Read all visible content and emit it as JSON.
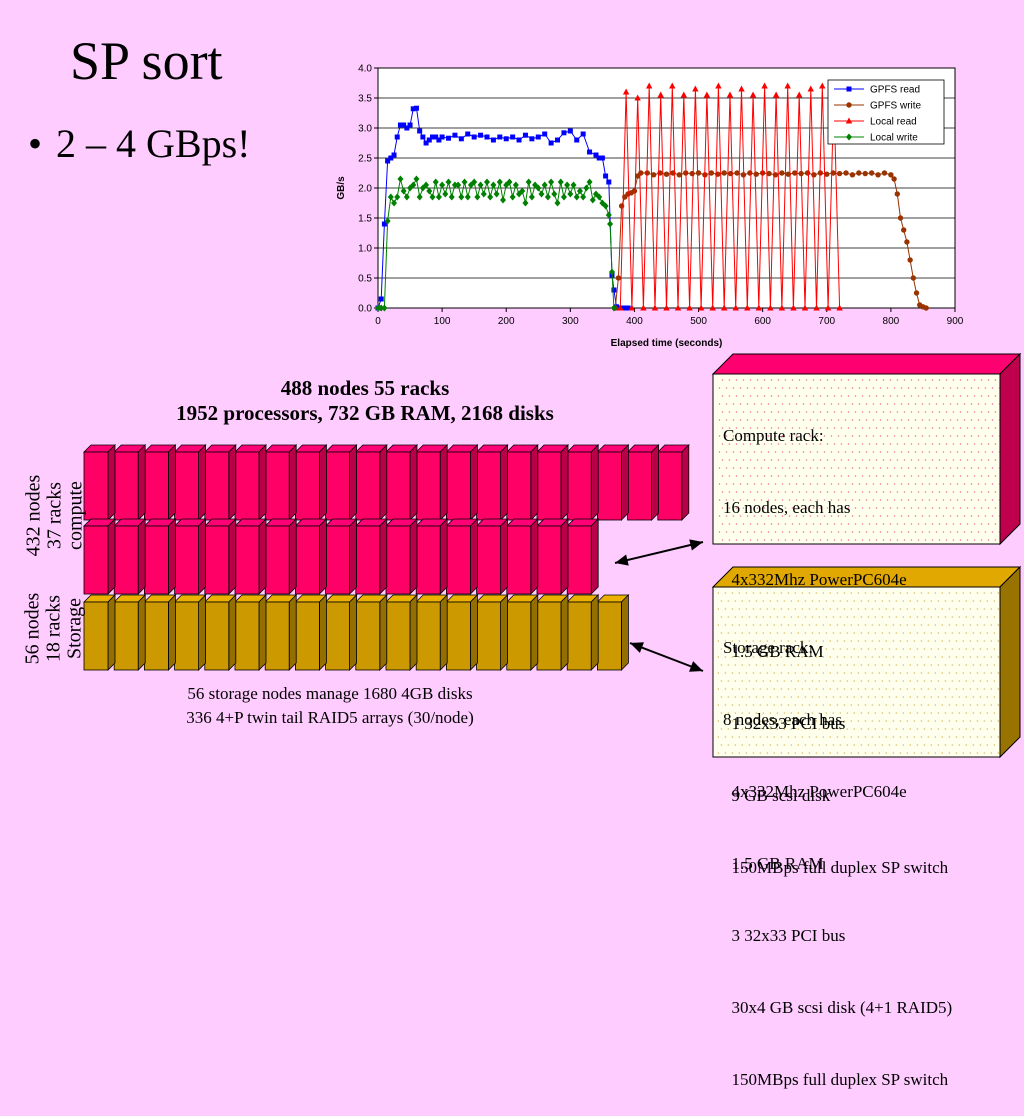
{
  "slide": {
    "title": "SP sort",
    "bullet": "2 – 4 GBps!"
  },
  "chart_data": {
    "type": "line",
    "xlabel": "Elapsed time (seconds)",
    "ylabel": "GB/s",
    "xlim": [
      0,
      900
    ],
    "ylim": [
      0,
      4.0
    ],
    "xticks": [
      0,
      100,
      200,
      300,
      400,
      500,
      600,
      700,
      800,
      900
    ],
    "yticks": [
      "0.0",
      "0.5",
      "1.0",
      "1.5",
      "2.0",
      "2.5",
      "3.0",
      "3.5",
      "4.0"
    ],
    "grid": "horizontal",
    "legend_position": "top-right",
    "series": [
      {
        "name": "GPFS read",
        "color": "#0000ff",
        "marker": "square",
        "x": [
          0,
          5,
          10,
          15,
          20,
          25,
          30,
          35,
          40,
          45,
          50,
          55,
          60,
          65,
          70,
          75,
          80,
          85,
          90,
          95,
          100,
          110,
          120,
          130,
          140,
          150,
          160,
          170,
          180,
          190,
          200,
          210,
          220,
          230,
          240,
          250,
          260,
          270,
          280,
          290,
          300,
          310,
          320,
          330,
          340,
          345,
          350,
          355,
          360,
          365,
          368,
          372,
          376,
          380,
          385,
          390
        ],
        "y": [
          0,
          0.15,
          1.4,
          2.45,
          2.5,
          2.55,
          2.85,
          3.05,
          3.05,
          3.0,
          3.05,
          3.32,
          3.33,
          2.95,
          2.85,
          2.75,
          2.8,
          2.85,
          2.85,
          2.8,
          2.85,
          2.83,
          2.88,
          2.82,
          2.9,
          2.85,
          2.88,
          2.85,
          2.8,
          2.85,
          2.82,
          2.85,
          2.8,
          2.88,
          2.82,
          2.85,
          2.9,
          2.75,
          2.8,
          2.92,
          2.95,
          2.8,
          2.9,
          2.6,
          2.55,
          2.5,
          2.5,
          2.2,
          2.1,
          0.55,
          0.3,
          0.02,
          0,
          0,
          0,
          0
        ]
      },
      {
        "name": "GPFS write",
        "color": "#993300",
        "marker": "circle",
        "x": [
          370,
          375,
          380,
          385,
          390,
          395,
          400,
          405,
          410,
          420,
          430,
          440,
          450,
          460,
          470,
          480,
          490,
          500,
          510,
          520,
          530,
          540,
          550,
          560,
          570,
          580,
          590,
          600,
          610,
          620,
          630,
          640,
          650,
          660,
          670,
          680,
          690,
          700,
          710,
          720,
          730,
          740,
          750,
          760,
          770,
          780,
          790,
          800,
          805,
          810,
          815,
          820,
          825,
          830,
          835,
          840,
          845,
          850,
          855
        ],
        "y": [
          0,
          0.5,
          1.7,
          1.85,
          1.9,
          1.92,
          1.95,
          2.2,
          2.25,
          2.25,
          2.22,
          2.25,
          2.23,
          2.25,
          2.22,
          2.25,
          2.24,
          2.25,
          2.22,
          2.25,
          2.23,
          2.25,
          2.24,
          2.25,
          2.22,
          2.25,
          2.23,
          2.25,
          2.24,
          2.22,
          2.25,
          2.23,
          2.25,
          2.24,
          2.25,
          2.22,
          2.25,
          2.23,
          2.25,
          2.24,
          2.25,
          2.22,
          2.25,
          2.24,
          2.25,
          2.22,
          2.25,
          2.22,
          2.15,
          1.9,
          1.5,
          1.3,
          1.1,
          0.8,
          0.5,
          0.25,
          0.05,
          0.02,
          0
        ]
      },
      {
        "name": "Local read",
        "color": "#ff0000",
        "marker": "triangle",
        "x": [
          378,
          387,
          396,
          405,
          414,
          423,
          432,
          441,
          450,
          459,
          468,
          477,
          486,
          495,
          504,
          513,
          522,
          531,
          540,
          549,
          558,
          567,
          576,
          585,
          594,
          603,
          612,
          621,
          630,
          639,
          648,
          657,
          666,
          675,
          684,
          693,
          702,
          711,
          720
        ],
        "y": [
          0,
          3.6,
          0,
          3.5,
          0,
          3.7,
          0,
          3.55,
          0,
          3.7,
          0,
          3.55,
          0,
          3.65,
          0,
          3.55,
          0,
          3.7,
          0,
          3.55,
          0,
          3.65,
          0,
          3.55,
          0,
          3.7,
          0,
          3.55,
          0,
          3.7,
          0,
          3.55,
          0,
          3.65,
          0,
          3.7,
          0,
          3.55,
          0
        ]
      },
      {
        "name": "Local write",
        "color": "#008000",
        "marker": "diamond",
        "x": [
          0,
          5,
          10,
          15,
          20,
          25,
          30,
          35,
          40,
          45,
          50,
          55,
          60,
          65,
          70,
          75,
          80,
          85,
          90,
          95,
          100,
          105,
          110,
          115,
          120,
          125,
          130,
          135,
          140,
          145,
          150,
          155,
          160,
          165,
          170,
          175,
          180,
          185,
          190,
          195,
          200,
          205,
          210,
          215,
          220,
          225,
          230,
          235,
          240,
          245,
          250,
          255,
          260,
          265,
          270,
          275,
          280,
          285,
          290,
          295,
          300,
          305,
          310,
          315,
          320,
          325,
          330,
          335,
          340,
          345,
          350,
          355,
          360,
          362,
          365,
          368
        ],
        "y": [
          0,
          0,
          0,
          1.45,
          1.85,
          1.75,
          1.85,
          2.15,
          1.95,
          1.85,
          2.0,
          2.05,
          2.15,
          1.85,
          2.0,
          2.05,
          1.95,
          1.85,
          2.1,
          1.85,
          2.05,
          1.9,
          2.1,
          1.85,
          2.05,
          2.05,
          1.85,
          2.1,
          1.85,
          2.05,
          2.1,
          1.85,
          2.05,
          1.9,
          2.1,
          1.85,
          2.05,
          1.9,
          2.1,
          1.8,
          2.05,
          2.1,
          1.85,
          2.05,
          1.9,
          1.95,
          1.75,
          2.1,
          1.85,
          2.05,
          2.0,
          1.9,
          2.05,
          1.85,
          2.1,
          1.9,
          1.75,
          2.1,
          1.85,
          2.05,
          1.9,
          2.05,
          1.85,
          1.95,
          1.85,
          2.0,
          2.1,
          1.8,
          1.9,
          1.85,
          1.75,
          1.7,
          1.55,
          1.4,
          0.6,
          0
        ]
      }
    ]
  },
  "system": {
    "summary_line1": "488 nodes 55 racks",
    "summary_line2": "1952 processors, 732 GB RAM, 2168 disks",
    "compute_label": [
      "432 nodes",
      "37 racks",
      "compute"
    ],
    "storage_label": [
      "56 nodes",
      "18 racks",
      "Storage"
    ],
    "compute_color": "#ff0066",
    "storage_color": "#cc9900",
    "compute_racks_row1": 20,
    "compute_racks_row2": 17,
    "storage_racks_row": 18,
    "storage_note_line1": "56 storage nodes manage 1680 4GB disks",
    "storage_note_line2": "336 4+P twin  tail RAID5 arrays (30/node)"
  },
  "compute_rack_box": {
    "lines": [
      "Compute rack:",
      "16 nodes, each has",
      "  4x332Mhz PowerPC604e",
      "  1.5 GB RAM",
      "  1 32x33 PCI bus",
      "  9 GB scsi disk",
      "  150MBps full duplex SP switch"
    ]
  },
  "storage_rack_box": {
    "lines": [
      "Storage rack:",
      "8 nodes, each has",
      "  4x332Mhz PowerPC604e",
      "  1.5 GB RAM",
      "  3 32x33 PCI bus",
      "  30x4 GB scsi disk (4+1 RAID5)",
      "  150MBps full duplex SP switch"
    ]
  }
}
